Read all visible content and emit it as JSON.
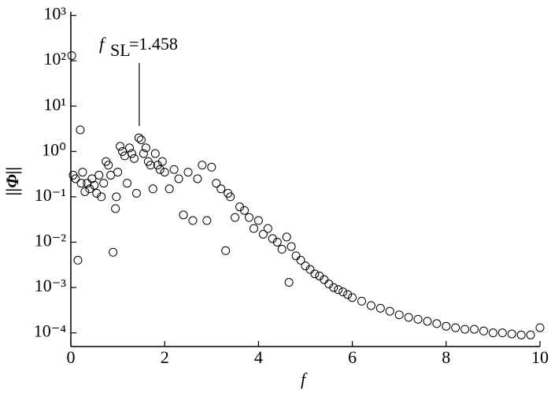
{
  "chart_data": {
    "type": "scatter",
    "xlabel": "f",
    "ylabel": "||Φ||",
    "annotation": {
      "text": "f",
      "subscript": "SL",
      "value_text": "=1.458",
      "x": 1.458
    },
    "log_y": true,
    "color": "#000000",
    "xlim": [
      0,
      10
    ],
    "xticks": [
      0,
      2,
      4,
      6,
      8,
      10
    ],
    "ylim": [
      5e-05,
      1200
    ],
    "yticks": [
      {
        "value": 1000,
        "label": "10³"
      },
      {
        "value": 100,
        "label": "10²"
      },
      {
        "value": 10,
        "label": "10¹"
      },
      {
        "value": 1,
        "label": "10⁰"
      },
      {
        "value": 0.1,
        "label": "10⁻¹"
      },
      {
        "value": 0.01,
        "label": "10⁻²"
      },
      {
        "value": 0.001,
        "label": "10⁻³"
      },
      {
        "value": 0.0001,
        "label": "10⁻⁴"
      }
    ],
    "x": [
      0.02,
      0.05,
      0.1,
      0.15,
      0.2,
      0.22,
      0.25,
      0.3,
      0.35,
      0.4,
      0.45,
      0.5,
      0.55,
      0.6,
      0.65,
      0.7,
      0.75,
      0.8,
      0.85,
      0.9,
      0.95,
      0.97,
      1.0,
      1.05,
      1.1,
      1.15,
      1.2,
      1.25,
      1.3,
      1.35,
      1.4,
      1.45,
      1.5,
      1.55,
      1.6,
      1.65,
      1.7,
      1.75,
      1.8,
      1.85,
      1.9,
      1.95,
      2.0,
      2.1,
      2.2,
      2.3,
      2.4,
      2.5,
      2.6,
      2.7,
      2.8,
      2.9,
      3.0,
      3.1,
      3.2,
      3.3,
      3.35,
      3.4,
      3.5,
      3.6,
      3.7,
      3.8,
      3.9,
      4.0,
      4.1,
      4.2,
      4.3,
      4.4,
      4.5,
      4.6,
      4.65,
      4.7,
      4.8,
      4.9,
      5.0,
      5.1,
      5.2,
      5.3,
      5.4,
      5.5,
      5.6,
      5.7,
      5.8,
      5.9,
      6.0,
      6.2,
      6.4,
      6.6,
      6.8,
      7.0,
      7.2,
      7.4,
      7.6,
      7.8,
      8.0,
      8.2,
      8.4,
      8.6,
      8.8,
      9.0,
      9.2,
      9.4,
      9.6,
      9.8,
      10.0
    ],
    "values": [
      130,
      0.3,
      0.25,
      0.004,
      3,
      0.2,
      0.35,
      0.13,
      0.2,
      0.15,
      0.25,
      0.18,
      0.12,
      0.3,
      0.1,
      0.2,
      0.6,
      0.5,
      0.3,
      0.006,
      0.055,
      0.1,
      0.35,
      1.3,
      1.0,
      0.8,
      0.2,
      1.2,
      0.9,
      0.7,
      0.12,
      2,
      1.8,
      0.9,
      1.2,
      0.6,
      0.5,
      0.15,
      0.9,
      0.5,
      0.4,
      0.6,
      0.35,
      0.15,
      0.4,
      0.25,
      0.04,
      0.35,
      0.03,
      0.25,
      0.5,
      0.03,
      0.45,
      0.2,
      0.15,
      0.0065,
      0.12,
      0.1,
      0.035,
      0.06,
      0.05,
      0.035,
      0.02,
      0.03,
      0.015,
      0.02,
      0.012,
      0.01,
      0.007,
      0.013,
      0.0013,
      0.008,
      0.005,
      0.004,
      0.003,
      0.0025,
      0.002,
      0.0018,
      0.0015,
      0.0012,
      0.001,
      0.0009,
      0.0008,
      0.0007,
      0.0006,
      0.0005,
      0.0004,
      0.00035,
      0.0003,
      0.00025,
      0.00022,
      0.0002,
      0.00018,
      0.00016,
      0.00014,
      0.00013,
      0.00012,
      0.00012,
      0.00011,
      0.0001,
      0.0001,
      9.5e-05,
      9e-05,
      9e-05,
      0.00013
    ]
  }
}
